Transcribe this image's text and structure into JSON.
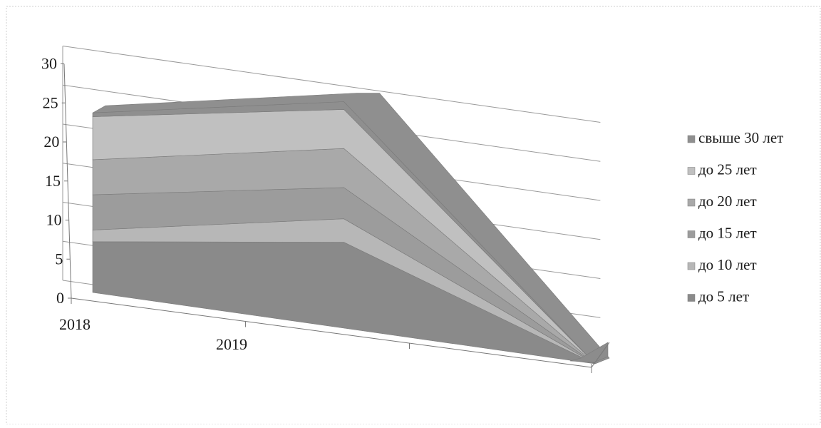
{
  "chart_data": {
    "type": "area",
    "style": "3d-stacked",
    "x": [
      "2018",
      "2019",
      ""
    ],
    "xlabels_shown": [
      "2018",
      "2019"
    ],
    "y_ticks": [
      "0",
      "5",
      "10",
      "15",
      "20",
      "25",
      "30"
    ],
    "ylim": [
      0,
      30
    ],
    "grid": true,
    "legend_position": "right",
    "series": [
      {
        "name": "до 5 лет",
        "values": [
          6.5,
          11,
          0
        ],
        "color": "#8a8a8a"
      },
      {
        "name": "до 10 лет",
        "values": [
          1.5,
          3,
          0
        ],
        "color": "#b7b7b7"
      },
      {
        "name": "до 15 лет",
        "values": [
          4.5,
          4,
          0
        ],
        "color": "#9c9c9c"
      },
      {
        "name": "до 20 лет",
        "values": [
          4.5,
          5,
          0
        ],
        "color": "#a9a9a9"
      },
      {
        "name": "до 25 лет",
        "values": [
          5.5,
          5,
          0
        ],
        "color": "#c0c0c0"
      },
      {
        "name": "свыше 30 лет",
        "values": [
          0.5,
          1,
          0
        ],
        "color": "#8f8f8f"
      }
    ]
  }
}
